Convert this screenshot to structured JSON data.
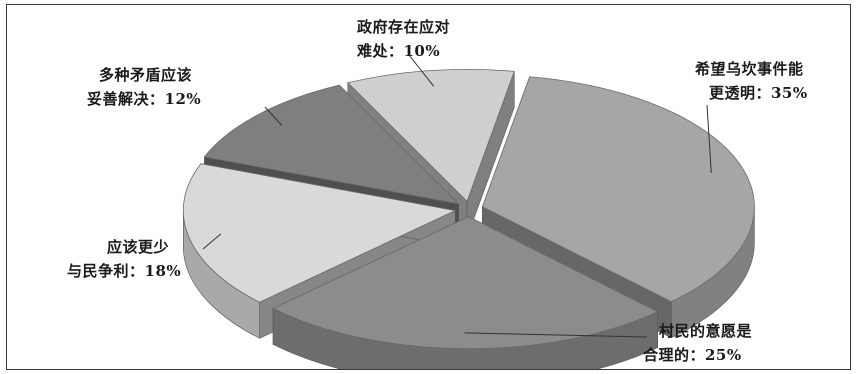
{
  "chart_data": {
    "type": "pie",
    "style": "3d-exploded",
    "legend": "none",
    "slices": [
      {
        "label_line1": "希望乌坎事件能",
        "label_line2": "更透明：35%",
        "value": 35,
        "color": "#a6a6a6"
      },
      {
        "label_line1": "村民的意愿是",
        "label_line2": "合理的：25%",
        "value": 25,
        "color": "#8c8c8c"
      },
      {
        "label_line1": "应该更少",
        "label_line2": "与民争利：18%",
        "value": 18,
        "color": "#d9d9d9"
      },
      {
        "label_line1": "多种矛盾应该",
        "label_line2": "妥善解决：12%",
        "value": 12,
        "color": "#7f7f7f"
      },
      {
        "label_line1": "政府存在应对",
        "label_line2": "难处：10%",
        "value": 10,
        "color": "#cfcfcf"
      }
    ]
  }
}
